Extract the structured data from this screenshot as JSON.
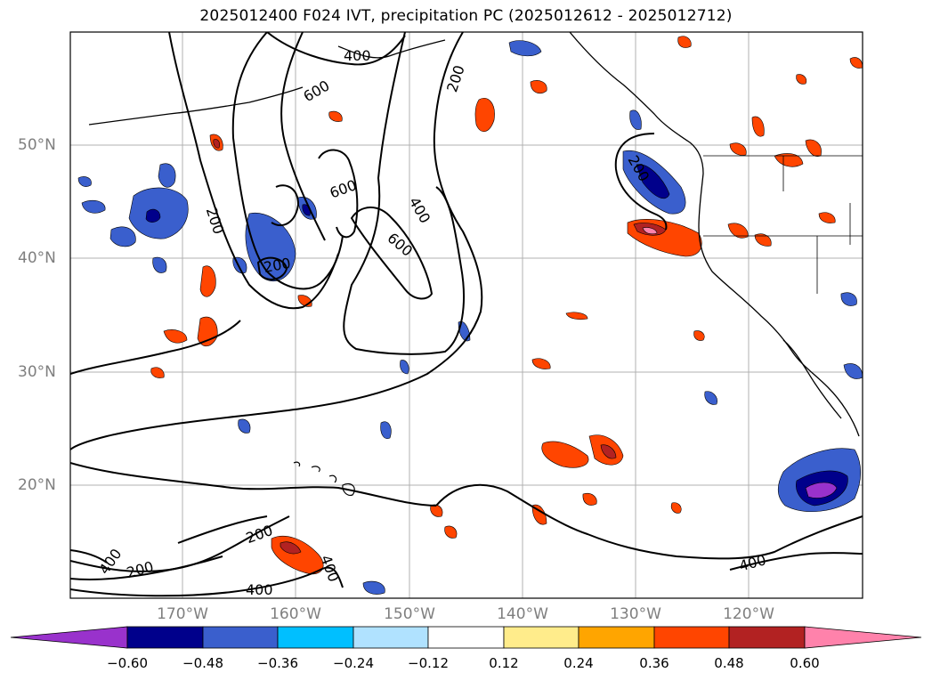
{
  "title": "2025012400 F024 IVT, precipitation PC (2025012612 - 2025012712)",
  "lat_labels": [
    "50°N",
    "40°N",
    "30°N",
    "20°N"
  ],
  "lon_labels": [
    "170°W",
    "160°W",
    "150°W",
    "140°W",
    "130°W",
    "120°W"
  ],
  "contour_labels": [
    "400",
    "200",
    "600",
    "600",
    "400",
    "600",
    "200",
    "200",
    "200",
    "400",
    "200",
    "200",
    "400",
    "400",
    "400"
  ],
  "colorbar": {
    "ticks": [
      "−0.60",
      "−0.48",
      "−0.36",
      "−0.24",
      "−0.12",
      "0.12",
      "0.24",
      "0.36",
      "0.48",
      "0.60"
    ],
    "colors": [
      "#9932cc",
      "#00008b",
      "#3a5fcd",
      "#00bfff",
      "#b0e2ff",
      "#ffffff",
      "#ffec8b",
      "#ffa500",
      "#ff4500",
      "#b22222",
      "#ff82ab"
    ]
  }
}
